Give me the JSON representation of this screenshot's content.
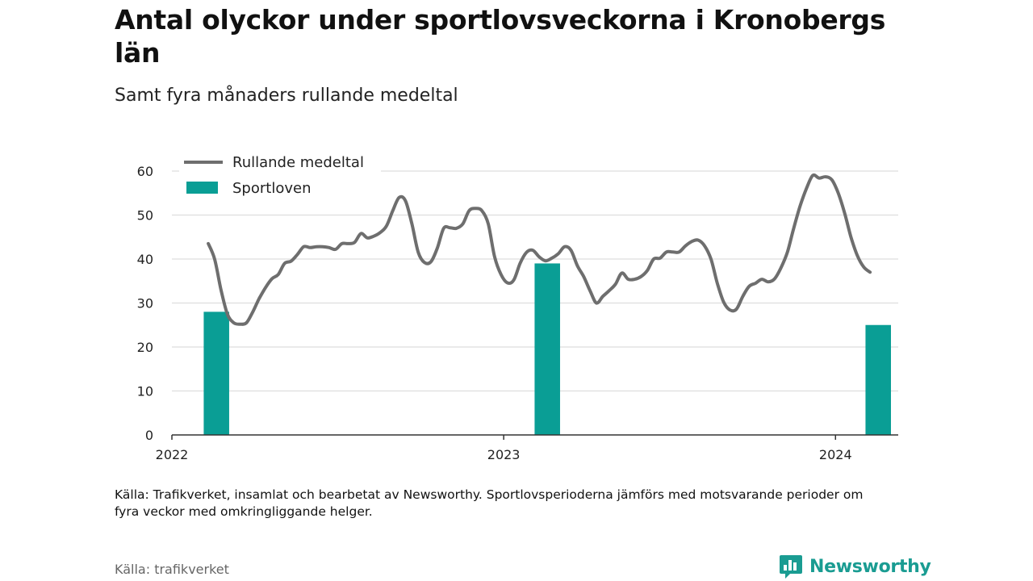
{
  "title": "Antal olyckor under sportlovsveckorna i Kronobergs län",
  "subtitle": "Samt fyra månaders rullande medeltal",
  "note": "Källa: Trafikverket, insamlat och bearbetat av Newsworthy. Sportlovsperioderna jämförs med motsvarande perioder om fyra veckor med omkringliggande helger.",
  "source": "Källa: trafikverket",
  "logo_text": "Newsworthy",
  "colors": {
    "line": "#6e6e6e",
    "bar": "#0a9e95",
    "grid": "#dddddd",
    "axis": "#333333",
    "brand": "#1a9c92"
  },
  "chart_data": {
    "type": "bar+line",
    "x_domain": [
      "2022-01-01",
      "2024-03-10"
    ],
    "ylim": [
      0,
      60
    ],
    "yticks": [
      0,
      10,
      20,
      30,
      40,
      50,
      60
    ],
    "xticks": [
      {
        "label": "2022",
        "date": "2022-01-01"
      },
      {
        "label": "2023",
        "date": "2023-01-01"
      },
      {
        "label": "2024",
        "date": "2024-01-01"
      }
    ],
    "legend": {
      "position": "top-left",
      "entries": [
        "Rullande medeltal",
        "Sportloven"
      ]
    },
    "bars": {
      "name": "Sportloven",
      "points": [
        {
          "start": "2022-02-05",
          "end": "2022-03-05",
          "value": 28
        },
        {
          "start": "2023-02-04",
          "end": "2023-03-04",
          "value": 39
        },
        {
          "start": "2024-02-03",
          "end": "2024-03-02",
          "value": 25
        }
      ]
    },
    "line": {
      "name": "Rullande medeltal",
      "points": [
        [
          "2022-02-10",
          43.5
        ],
        [
          "2022-02-17",
          40
        ],
        [
          "2022-02-24",
          33
        ],
        [
          "2022-03-03",
          27.5
        ],
        [
          "2022-03-10",
          25.5
        ],
        [
          "2022-03-17",
          25.2
        ],
        [
          "2022-03-24",
          25.5
        ],
        [
          "2022-03-31",
          28
        ],
        [
          "2022-04-07",
          31
        ],
        [
          "2022-04-14",
          33.5
        ],
        [
          "2022-04-21",
          35.5
        ],
        [
          "2022-04-28",
          36.5
        ],
        [
          "2022-05-05",
          39
        ],
        [
          "2022-05-12",
          39.5
        ],
        [
          "2022-05-19",
          41
        ],
        [
          "2022-05-26",
          42.8
        ],
        [
          "2022-06-02",
          42.6
        ],
        [
          "2022-06-09",
          42.8
        ],
        [
          "2022-06-16",
          42.8
        ],
        [
          "2022-06-23",
          42.6
        ],
        [
          "2022-06-30",
          42.2
        ],
        [
          "2022-07-07",
          43.5
        ],
        [
          "2022-07-14",
          43.5
        ],
        [
          "2022-07-21",
          43.8
        ],
        [
          "2022-07-28",
          45.8
        ],
        [
          "2022-08-04",
          44.8
        ],
        [
          "2022-08-11",
          45.2
        ],
        [
          "2022-08-18",
          46
        ],
        [
          "2022-08-25",
          47.5
        ],
        [
          "2022-09-01",
          51
        ],
        [
          "2022-09-08",
          54
        ],
        [
          "2022-09-15",
          53.2
        ],
        [
          "2022-09-22",
          48
        ],
        [
          "2022-09-29",
          41.5
        ],
        [
          "2022-10-06",
          39.2
        ],
        [
          "2022-10-13",
          39.4
        ],
        [
          "2022-10-20",
          42.5
        ],
        [
          "2022-10-27",
          47
        ],
        [
          "2022-11-03",
          47.1
        ],
        [
          "2022-11-10",
          47
        ],
        [
          "2022-11-17",
          48
        ],
        [
          "2022-11-24",
          51
        ],
        [
          "2022-12-01",
          51.5
        ],
        [
          "2022-12-08",
          51
        ],
        [
          "2022-12-15",
          48
        ],
        [
          "2022-12-22",
          40.5
        ],
        [
          "2022-12-29",
          36.5
        ],
        [
          "2023-01-05",
          34.6
        ],
        [
          "2023-01-12",
          35.2
        ],
        [
          "2023-01-19",
          39
        ],
        [
          "2023-01-26",
          41.5
        ],
        [
          "2023-02-02",
          42
        ],
        [
          "2023-02-09",
          40.5
        ],
        [
          "2023-02-16",
          39.6
        ],
        [
          "2023-02-23",
          40.2
        ],
        [
          "2023-03-02",
          41.2
        ],
        [
          "2023-03-09",
          42.8
        ],
        [
          "2023-03-16",
          42
        ],
        [
          "2023-03-23",
          38.5
        ],
        [
          "2023-03-30",
          36
        ],
        [
          "2023-04-06",
          32.8
        ],
        [
          "2023-04-13",
          30
        ],
        [
          "2023-04-20",
          31.5
        ],
        [
          "2023-04-27",
          32.8
        ],
        [
          "2023-05-04",
          34.3
        ],
        [
          "2023-05-11",
          36.8
        ],
        [
          "2023-05-18",
          35.4
        ],
        [
          "2023-05-25",
          35.4
        ],
        [
          "2023-06-01",
          36
        ],
        [
          "2023-06-08",
          37.4
        ],
        [
          "2023-06-15",
          40
        ],
        [
          "2023-06-22",
          40.2
        ],
        [
          "2023-06-29",
          41.6
        ],
        [
          "2023-07-06",
          41.6
        ],
        [
          "2023-07-13",
          41.6
        ],
        [
          "2023-07-20",
          43
        ],
        [
          "2023-07-27",
          44
        ],
        [
          "2023-08-03",
          44.3
        ],
        [
          "2023-08-10",
          43
        ],
        [
          "2023-08-17",
          40
        ],
        [
          "2023-08-24",
          34.5
        ],
        [
          "2023-08-31",
          30.2
        ],
        [
          "2023-09-07",
          28.4
        ],
        [
          "2023-09-14",
          28.6
        ],
        [
          "2023-09-21",
          31.5
        ],
        [
          "2023-09-28",
          33.8
        ],
        [
          "2023-10-05",
          34.5
        ],
        [
          "2023-10-12",
          35.4
        ],
        [
          "2023-10-19",
          34.8
        ],
        [
          "2023-10-26",
          35.5
        ],
        [
          "2023-11-02",
          38
        ],
        [
          "2023-11-09",
          41.5
        ],
        [
          "2023-11-16",
          47
        ],
        [
          "2023-11-23",
          52
        ],
        [
          "2023-11-30",
          56
        ],
        [
          "2023-12-07",
          59
        ],
        [
          "2023-12-14",
          58.4
        ],
        [
          "2023-12-21",
          58.7
        ],
        [
          "2023-12-28",
          58
        ],
        [
          "2024-01-04",
          55
        ],
        [
          "2024-01-11",
          50.5
        ],
        [
          "2024-01-18",
          45
        ],
        [
          "2024-01-25",
          40.8
        ],
        [
          "2024-02-01",
          38.2
        ],
        [
          "2024-02-08",
          37
        ]
      ]
    }
  }
}
